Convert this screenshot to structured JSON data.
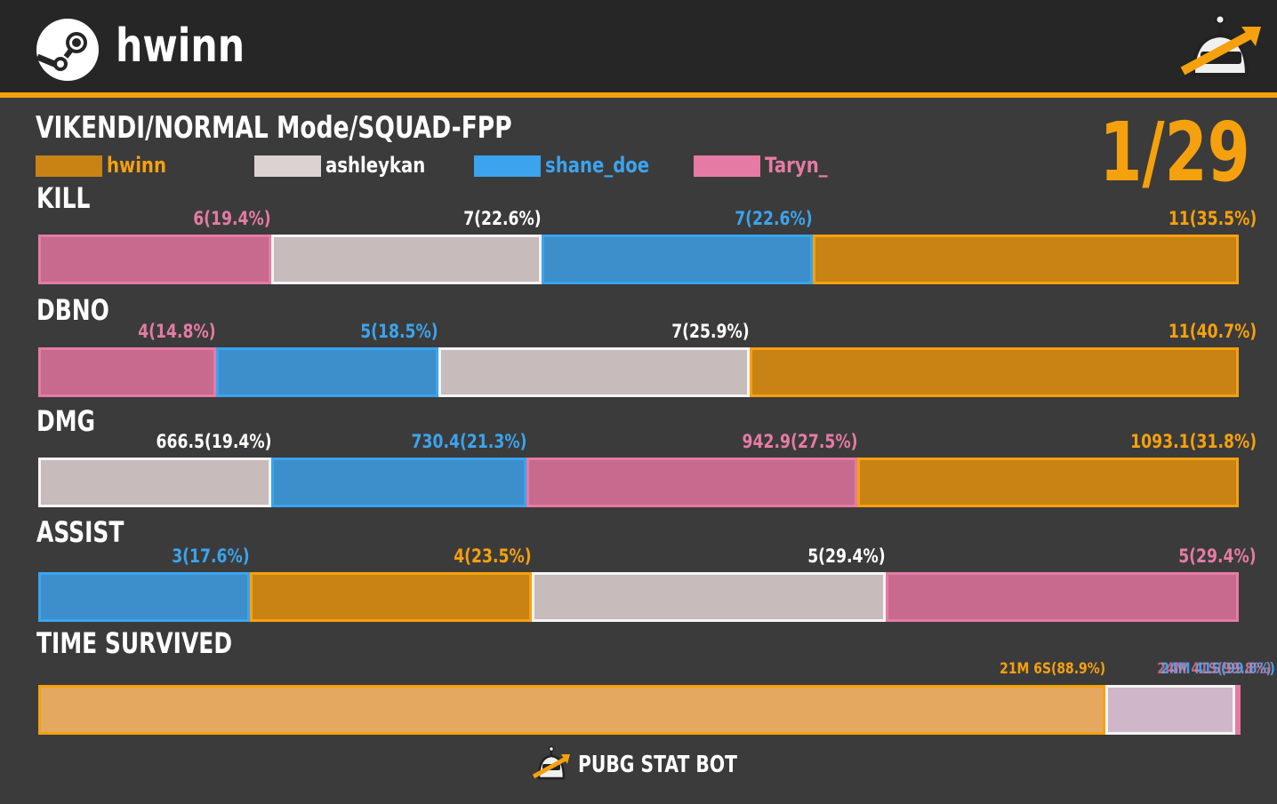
{
  "header": {
    "player_name": "hwinn",
    "steam_icon": "steam-logo-icon",
    "bot_icon": "pubg-stat-bot-robot-icon"
  },
  "match": {
    "mode_title": "VIKENDI/NORMAL Mode/SQUAD-FPP",
    "rank": "1/29"
  },
  "colors": {
    "accent": "#f5a10e",
    "hwinn_fill": "#c88314",
    "hwinn_border": "#f5a10e",
    "hwinn_text": "#f5a10e",
    "ashleykan_fill": "#c7bbbb",
    "ashleykan_border": "#f4f4f4",
    "ashleykan_text": "#ffffff",
    "shane_doe_fill": "#3c8fca",
    "shane_doe_border": "#3ba4ee",
    "shane_doe_text": "#3ba4ee",
    "taryn_fill": "#c8698e",
    "taryn_border": "#e57ba4",
    "taryn_text": "#e57ba4"
  },
  "legend": [
    {
      "key": "hwinn",
      "label": "hwinn"
    },
    {
      "key": "ashleykan",
      "label": "ashleykan"
    },
    {
      "key": "shane_doe",
      "label": "shane_doe"
    },
    {
      "key": "taryn",
      "label": "Taryn_"
    }
  ],
  "chart_data": [
    {
      "type": "bar",
      "title": "KILL",
      "stacked": true,
      "segments": [
        {
          "player": "taryn",
          "value": 6,
          "percent": 19.4,
          "label": "6(19.4%)"
        },
        {
          "player": "ashleykan",
          "value": 7,
          "percent": 22.6,
          "label": "7(22.6%)"
        },
        {
          "player": "shane_doe",
          "value": 7,
          "percent": 22.6,
          "label": "7(22.6%)"
        },
        {
          "player": "hwinn",
          "value": 11,
          "percent": 35.5,
          "label": "11(35.5%)"
        }
      ]
    },
    {
      "type": "bar",
      "title": "DBNO",
      "stacked": true,
      "segments": [
        {
          "player": "taryn",
          "value": 4,
          "percent": 14.8,
          "label": "4(14.8%)"
        },
        {
          "player": "shane_doe",
          "value": 5,
          "percent": 18.5,
          "label": "5(18.5%)"
        },
        {
          "player": "ashleykan",
          "value": 7,
          "percent": 25.9,
          "label": "7(25.9%)"
        },
        {
          "player": "hwinn",
          "value": 11,
          "percent": 40.7,
          "label": "11(40.7%)"
        }
      ]
    },
    {
      "type": "bar",
      "title": "DMG",
      "stacked": true,
      "segments": [
        {
          "player": "ashleykan",
          "value": 666.5,
          "percent": 19.4,
          "label": "666.5(19.4%)"
        },
        {
          "player": "shane_doe",
          "value": 730.4,
          "percent": 21.3,
          "label": "730.4(21.3%)"
        },
        {
          "player": "taryn",
          "value": 942.9,
          "percent": 27.5,
          "label": "942.9(27.5%)"
        },
        {
          "player": "hwinn",
          "value": 1093.1,
          "percent": 31.8,
          "label": "1093.1(31.8%)"
        }
      ]
    },
    {
      "type": "bar",
      "title": "ASSIST",
      "stacked": true,
      "segments": [
        {
          "player": "shane_doe",
          "value": 3,
          "percent": 17.6,
          "label": "3(17.6%)"
        },
        {
          "player": "hwinn",
          "value": 4,
          "percent": 23.5,
          "label": "4(23.5%)"
        },
        {
          "player": "ashleykan",
          "value": 5,
          "percent": 29.4,
          "label": "5(29.4%)"
        },
        {
          "player": "taryn",
          "value": 5,
          "percent": 29.4,
          "label": "5(29.4%)"
        }
      ]
    },
    {
      "type": "bar",
      "title": "TIME SURVIVED",
      "stacked": true,
      "segments": [
        {
          "player": "hwinn",
          "value": 21.1,
          "percent": 88.9,
          "label": "21M 6S(88.9%)",
          "fill": "#e5a861",
          "small": true
        },
        {
          "player": "ashleykan",
          "value": 2.6,
          "percent": 10.8,
          "label": "",
          "fill": "#cfb6c9"
        },
        {
          "player": "taryn",
          "value": 0.1,
          "percent": 0.3,
          "label": "",
          "fill": "#cfb6c9"
        }
      ],
      "overlap_labels": [
        "24M 41S(99.8%)",
        "24M 41S(99.8%)"
      ]
    }
  ],
  "footer": {
    "text": "PUBG STAT BOT",
    "icon": "pubg-stat-bot-robot-icon"
  }
}
